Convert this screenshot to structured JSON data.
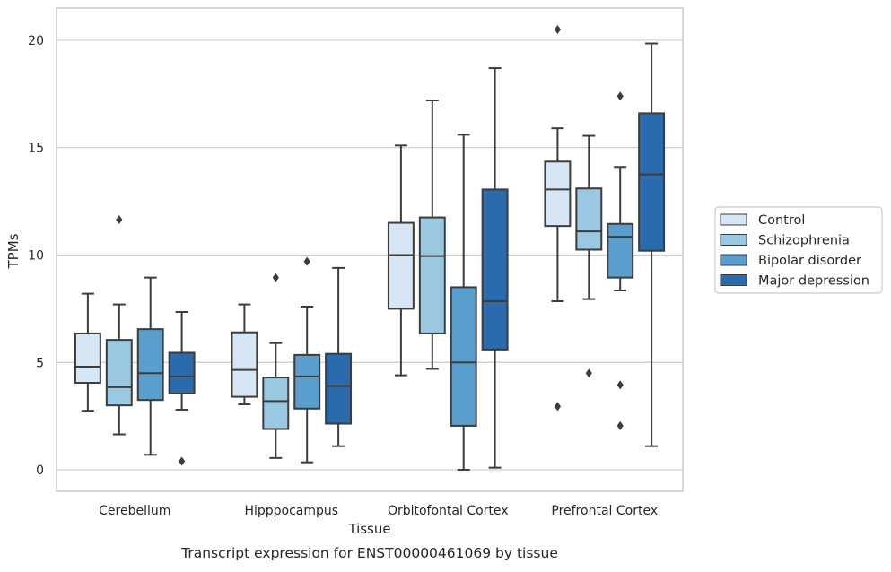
{
  "chart_data": {
    "type": "box",
    "title": "",
    "caption": "Transcript expression for ENST00000461069 by tissue",
    "xlabel": "Tissue",
    "ylabel": "TPMs",
    "ylim": [
      -1.0,
      21.5
    ],
    "yticks": [
      0,
      5,
      10,
      15,
      20
    ],
    "grid": "horizontal",
    "legend_position": "right",
    "categories": [
      "Cerebellum",
      "Hipppocampus",
      "Orbitofontal Cortex",
      "Prefrontal Cortex"
    ],
    "series": [
      {
        "name": "Control",
        "color": "#d6e6f4",
        "boxes": [
          {
            "whislo": 2.75,
            "q1": 4.05,
            "med": 4.8,
            "q3": 6.35,
            "whishi": 8.2,
            "fliers": []
          },
          {
            "whislo": 3.05,
            "q1": 3.4,
            "med": 4.65,
            "q3": 6.4,
            "whishi": 7.7,
            "fliers": []
          },
          {
            "whislo": 4.4,
            "q1": 7.5,
            "med": 10.0,
            "q3": 11.5,
            "whishi": 15.1,
            "fliers": []
          },
          {
            "whislo": 7.85,
            "q1": 11.35,
            "med": 13.05,
            "q3": 14.35,
            "whishi": 15.9,
            "fliers": [
              20.5,
              2.95
            ]
          }
        ]
      },
      {
        "name": "Schizophrenia",
        "color": "#9ac8e0",
        "boxes": [
          {
            "whislo": 1.65,
            "q1": 3.0,
            "med": 3.85,
            "q3": 6.05,
            "whishi": 7.7,
            "fliers": [
              11.65
            ]
          },
          {
            "whislo": 0.55,
            "q1": 1.9,
            "med": 3.2,
            "q3": 4.3,
            "whishi": 5.9,
            "fliers": [
              8.95
            ]
          },
          {
            "whislo": 4.7,
            "q1": 6.35,
            "med": 9.95,
            "q3": 11.75,
            "whishi": 17.2,
            "fliers": []
          },
          {
            "whislo": 7.95,
            "q1": 10.25,
            "med": 11.1,
            "q3": 13.1,
            "whishi": 15.55,
            "fliers": [
              4.5
            ]
          }
        ]
      },
      {
        "name": "Bipolar disorder",
        "color": "#5a9ecd",
        "boxes": [
          {
            "whislo": 0.7,
            "q1": 3.25,
            "med": 4.5,
            "q3": 6.55,
            "whishi": 8.95,
            "fliers": []
          },
          {
            "whislo": 0.35,
            "q1": 2.85,
            "med": 4.35,
            "q3": 5.35,
            "whishi": 7.6,
            "fliers": [
              9.7
            ]
          },
          {
            "whislo": 0.0,
            "q1": 2.05,
            "med": 5.0,
            "q3": 8.5,
            "whishi": 15.6,
            "fliers": []
          },
          {
            "whislo": 8.35,
            "q1": 8.95,
            "med": 10.85,
            "q3": 11.45,
            "whishi": 14.1,
            "fliers": [
              17.4,
              3.95,
              2.05
            ]
          }
        ]
      },
      {
        "name": "Major depression",
        "color": "#2a6aad",
        "boxes": [
          {
            "whislo": 2.8,
            "q1": 3.55,
            "med": 4.35,
            "q3": 5.45,
            "whishi": 7.35,
            "fliers": [
              0.4
            ]
          },
          {
            "whislo": 1.1,
            "q1": 2.15,
            "med": 3.9,
            "q3": 5.4,
            "whishi": 9.4,
            "fliers": []
          },
          {
            "whislo": 0.1,
            "q1": 5.6,
            "med": 7.85,
            "q3": 13.05,
            "whishi": 18.7,
            "fliers": []
          },
          {
            "whislo": 1.1,
            "q1": 10.2,
            "med": 13.75,
            "q3": 16.6,
            "whishi": 19.85,
            "fliers": []
          }
        ]
      }
    ]
  }
}
